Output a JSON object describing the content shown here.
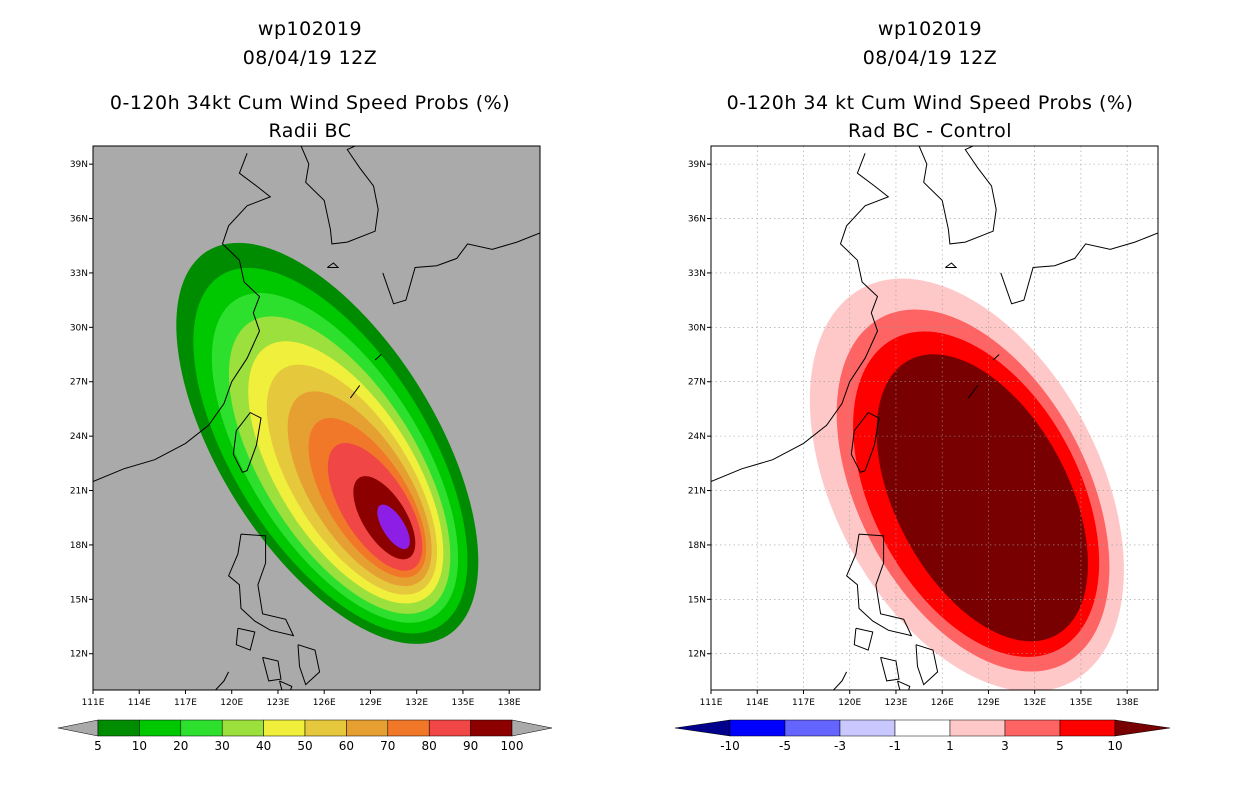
{
  "chart_data": [
    {
      "type": "heatmap",
      "panel": "left",
      "storm_id": "wp102019",
      "datetime": "08/04/19 12Z",
      "title": "0-120h 34kt Cum Wind Speed Probs (%)",
      "subtitle": "Radii BC",
      "x_ticks": [
        "111E",
        "114E",
        "117E",
        "120E",
        "123E",
        "126E",
        "129E",
        "132E",
        "135E",
        "138E"
      ],
      "y_ticks": [
        "39N",
        "36N",
        "33N",
        "30N",
        "27N",
        "24N",
        "21N",
        "18N",
        "15N",
        "12N"
      ],
      "xlim_deg_e": [
        111,
        140
      ],
      "ylim_deg_n": [
        10,
        40
      ],
      "background_color": "#aaaaaa",
      "colorbar": {
        "labels": [
          "5",
          "10",
          "20",
          "30",
          "40",
          "50",
          "60",
          "70",
          "80",
          "90",
          "100"
        ],
        "colors": [
          "#008c00",
          "#00c800",
          "#2de02d",
          "#9be03c",
          "#f0f03c",
          "#e6c83c",
          "#e6a032",
          "#f07828",
          "#f04646",
          "#8c0000",
          "#8c1ee6"
        ]
      },
      "feature": "probability swath centered near 19N 130E, elongated NW toward 33N 120E"
    },
    {
      "type": "heatmap",
      "panel": "right",
      "storm_id": "wp102019",
      "datetime": "08/04/19 12Z",
      "title": "0-120h 34 kt Cum Wind Speed Probs (%)",
      "subtitle": "Rad BC - Control",
      "x_ticks": [
        "111E",
        "114E",
        "117E",
        "120E",
        "123E",
        "126E",
        "129E",
        "132E",
        "135E",
        "138E"
      ],
      "y_ticks": [
        "39N",
        "36N",
        "33N",
        "30N",
        "27N",
        "24N",
        "21N",
        "18N",
        "15N",
        "12N"
      ],
      "xlim_deg_e": [
        111,
        140
      ],
      "ylim_deg_n": [
        10,
        40
      ],
      "background_color": "#ffffff",
      "colorbar": {
        "labels": [
          "-10",
          "-5",
          "-3",
          "-1",
          "1",
          "3",
          "5",
          "10"
        ],
        "colors": [
          "#00008c",
          "#0000ff",
          "#6464ff",
          "#c8c8ff",
          "#ffffff",
          "#ffc8c8",
          "#ff6464",
          "#ff0000",
          "#780000"
        ]
      },
      "feature": "positive difference region (up to >10) centered near 21N 128E"
    }
  ]
}
